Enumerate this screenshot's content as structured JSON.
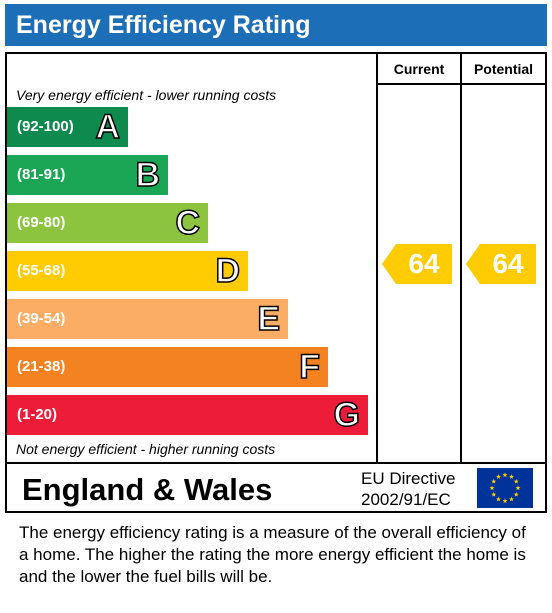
{
  "title": "Energy Efficiency Rating",
  "columns": {
    "current": "Current",
    "potential": "Potential"
  },
  "top_note": "Very energy efficient - lower running costs",
  "bottom_note": "Not energy efficient - higher running costs",
  "chart_data": {
    "type": "bar",
    "title": "Energy Efficiency Rating",
    "categories": [
      "A",
      "B",
      "C",
      "D",
      "E",
      "F",
      "G"
    ],
    "bands": [
      {
        "range": "(92-100)",
        "letter": "A",
        "color": "#0f8a4f"
      },
      {
        "range": "(81-91)",
        "letter": "B",
        "color": "#1ba656"
      },
      {
        "range": "(69-80)",
        "letter": "C",
        "color": "#8cc43f"
      },
      {
        "range": "(55-68)",
        "letter": "D",
        "color": "#ffcc02"
      },
      {
        "range": "(39-54)",
        "letter": "E",
        "color": "#fbad65"
      },
      {
        "range": "(21-38)",
        "letter": "F",
        "color": "#f48221"
      },
      {
        "range": "(1-20)",
        "letter": "G",
        "color": "#ed1c38"
      }
    ],
    "current": {
      "value": 64,
      "band": "D",
      "color": "#ffcc02"
    },
    "potential": {
      "value": 64,
      "band": "D",
      "color": "#ffcc02"
    }
  },
  "footer": {
    "region": "England & Wales",
    "directive_line1": "EU Directive",
    "directive_line2": "2002/91/EC",
    "flag_icon": "eu-flag-icon",
    "flag_colors": {
      "field": "#003399",
      "stars": "#ffcc00"
    }
  },
  "description": "The energy efficiency rating is a measure of the overall efficiency of a home.  The higher the rating the more energy efficient the home is and the lower the fuel bills will be."
}
